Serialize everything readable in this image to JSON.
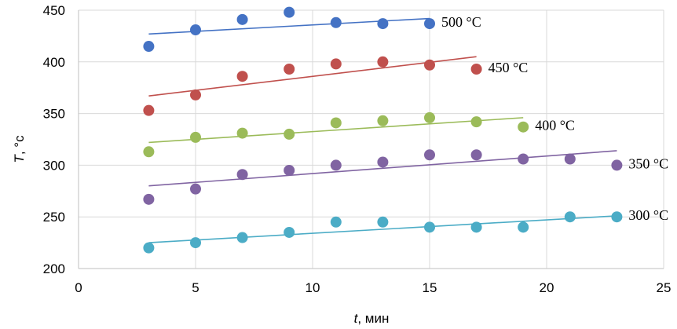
{
  "chart_data": {
    "type": "scatter",
    "xlabel_var": "t",
    "xlabel_unit": ", мин",
    "ylabel_var": "T",
    "ylabel_unit": ", °c",
    "xlim": [
      0,
      25
    ],
    "ylim": [
      200,
      450
    ],
    "xticks": [
      "0",
      "5",
      "10",
      "15",
      "20",
      "25"
    ],
    "yticks": [
      "200",
      "250",
      "300",
      "350",
      "400",
      "450"
    ],
    "grid": true,
    "legend": "none",
    "series": [
      {
        "name": "500 °C",
        "color": "#4472c4",
        "x": [
          3,
          5,
          7,
          9,
          11,
          13,
          15
        ],
        "y": [
          415,
          431,
          441,
          448,
          438,
          437,
          437
        ],
        "trend": [
          [
            3,
            427
          ],
          [
            15,
            442
          ]
        ]
      },
      {
        "name": "450 °C",
        "color": "#c0504d",
        "x": [
          3,
          5,
          7,
          9,
          11,
          13,
          15,
          17
        ],
        "y": [
          353,
          368,
          386,
          393,
          398,
          400,
          397,
          393
        ],
        "trend": [
          [
            3,
            367
          ],
          [
            17,
            405
          ]
        ]
      },
      {
        "name": "400 °C",
        "color": "#9bbb59",
        "x": [
          3,
          5,
          7,
          9,
          11,
          13,
          15,
          17,
          19
        ],
        "y": [
          313,
          327,
          331,
          330,
          341,
          343,
          346,
          342,
          337
        ],
        "trend": [
          [
            3,
            322
          ],
          [
            19,
            346
          ]
        ]
      },
      {
        "name": "350 °C",
        "color": "#8064a2",
        "x": [
          3,
          5,
          7,
          9,
          11,
          13,
          15,
          17,
          19,
          21,
          23
        ],
        "y": [
          267,
          277,
          291,
          295,
          300,
          303,
          310,
          310,
          306,
          306,
          300
        ],
        "trend": [
          [
            3,
            280
          ],
          [
            23,
            314
          ]
        ]
      },
      {
        "name": "300 °C",
        "color": "#4bacc6",
        "x": [
          3,
          5,
          7,
          9,
          11,
          13,
          15,
          17,
          19,
          21,
          23
        ],
        "y": [
          220,
          225,
          230,
          235,
          245,
          245,
          240,
          240,
          240,
          250,
          250
        ],
        "trend": [
          [
            3,
            225
          ],
          [
            23,
            251
          ]
        ]
      }
    ]
  }
}
